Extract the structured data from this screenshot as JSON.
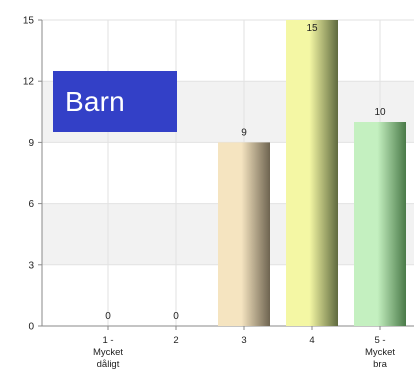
{
  "annotation": {
    "text": "Barn",
    "background": "#3340c7",
    "color": "#ffffff"
  },
  "chart_data": {
    "type": "bar",
    "categories": [
      [
        "1 -",
        "Mycket",
        "dåligt"
      ],
      [
        "2"
      ],
      [
        "3"
      ],
      [
        "4"
      ],
      [
        "5 -",
        "Mycket",
        "bra"
      ]
    ],
    "values": [
      0,
      0,
      9,
      15,
      10
    ],
    "ylim": [
      0,
      15
    ],
    "yticks": [
      0,
      3,
      6,
      9,
      12,
      15
    ],
    "grid": true,
    "legend": "none",
    "bar_colors": [
      {
        "light": "#f2e6c4",
        "dark": "#7a6f58"
      },
      {
        "light": "#f2e6c4",
        "dark": "#7a6f58"
      },
      {
        "light": "#f5e4c0",
        "dark": "#6e6450"
      },
      {
        "light": "#f4f7a4",
        "dark": "#5f6a3f"
      },
      {
        "light": "#c4f0c0",
        "dark": "#4a7a48"
      }
    ],
    "band_color": "#f2f2f2",
    "grid_color": "#e2e2e2"
  }
}
